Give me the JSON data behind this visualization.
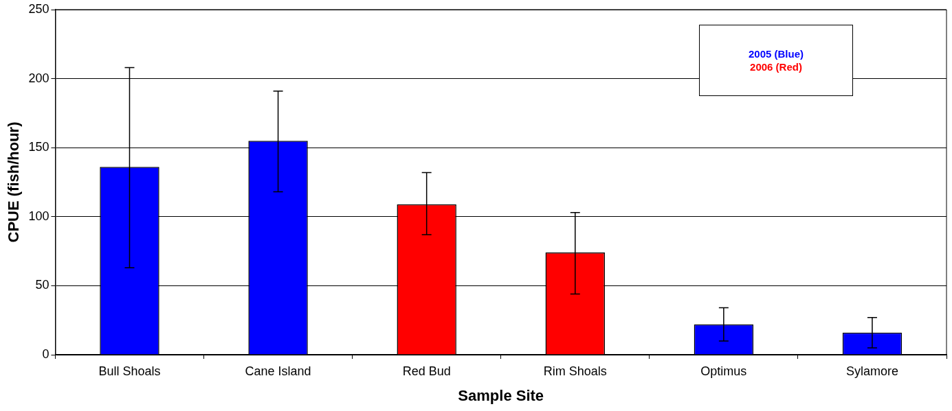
{
  "chart_data": {
    "type": "bar",
    "xlabel": "Sample Site",
    "ylabel": "CPUE (fish/hour)",
    "categories": [
      "Bull Shoals",
      "Cane Island",
      "Red Bud",
      "Rim Shoals",
      "Optimus",
      "Sylamore"
    ],
    "series": [
      {
        "name": "2005 (Blue)",
        "color": "#0000ff",
        "values": [
          136,
          155,
          null,
          null,
          22,
          16
        ],
        "errors": [
          [
            63,
            208
          ],
          [
            118,
            191
          ],
          null,
          null,
          [
            10,
            34
          ],
          [
            5,
            27
          ]
        ]
      },
      {
        "name": "2006 (Red)",
        "color": "#ff0000",
        "values": [
          null,
          null,
          109,
          74,
          null,
          null
        ],
        "errors": [
          null,
          null,
          [
            87,
            132
          ],
          [
            44,
            103
          ],
          null,
          null
        ]
      }
    ],
    "ylim": [
      0,
      250
    ],
    "yticks": [
      0,
      50,
      100,
      150,
      200,
      250
    ],
    "grid": "y",
    "legend": "top right"
  }
}
